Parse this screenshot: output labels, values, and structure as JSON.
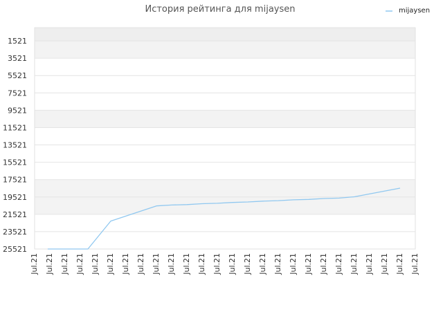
{
  "chart_data": {
    "type": "line",
    "title": "История рейтинга для mijaysen",
    "legend_position": "top-right",
    "grid": true,
    "y_axis": {
      "inverted": true,
      "ylim": [
        25521,
        0
      ],
      "ticks": [
        1521,
        3521,
        5521,
        7521,
        9521,
        11521,
        13521,
        15521,
        17521,
        19521,
        21521,
        23521,
        25521
      ]
    },
    "x_axis": {
      "tick_labels": [
        "Jul.21",
        "Jul.21",
        "Jul.21",
        "Jul.21",
        "Jul.21",
        "Jul.21",
        "Jul.21",
        "Jul.21",
        "Jul.21",
        "Jul.21",
        "Jul.21",
        "Jul.21",
        "Jul.21",
        "Jul.21",
        "Jul.21",
        "Jul.21",
        "Jul.21",
        "Jul.21",
        "Jul.21",
        "Jul.21",
        "Jul.21",
        "Jul.21",
        "Jul.21",
        "Jul.21",
        "Jul.21",
        "Jul.21"
      ]
    },
    "series": [
      {
        "name": "mijaysen",
        "color": "#90c8f0",
        "points": [
          {
            "x": 0.86,
            "y": 25521
          },
          {
            "x": 3.5,
            "y": 25521
          },
          {
            "x": 5.0,
            "y": 22300
          },
          {
            "x": 8.0,
            "y": 20550
          },
          {
            "x": 9.0,
            "y": 20450
          },
          {
            "x": 10.0,
            "y": 20400
          },
          {
            "x": 11.0,
            "y": 20300
          },
          {
            "x": 12.0,
            "y": 20250
          },
          {
            "x": 13.0,
            "y": 20150
          },
          {
            "x": 14.0,
            "y": 20100
          },
          {
            "x": 15.0,
            "y": 20000
          },
          {
            "x": 16.0,
            "y": 19950
          },
          {
            "x": 17.0,
            "y": 19850
          },
          {
            "x": 18.0,
            "y": 19800
          },
          {
            "x": 19.0,
            "y": 19700
          },
          {
            "x": 20.0,
            "y": 19650
          },
          {
            "x": 21.0,
            "y": 19500
          },
          {
            "x": 24.0,
            "y": 18500
          }
        ]
      }
    ]
  }
}
